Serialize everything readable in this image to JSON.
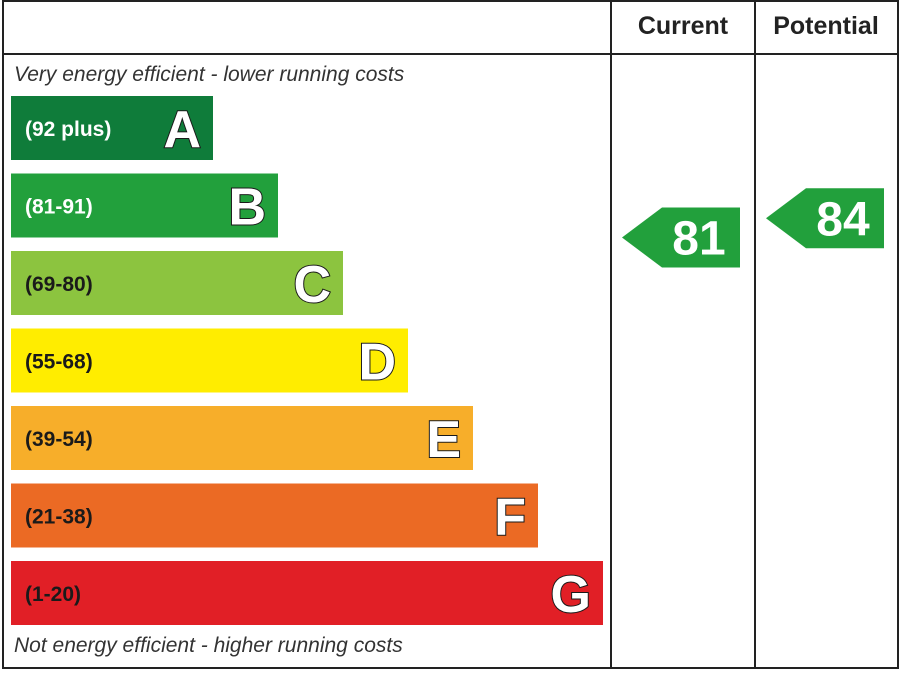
{
  "header": {
    "current_label": "Current",
    "potential_label": "Potential"
  },
  "chart_data": {
    "type": "bar",
    "top_note": "Very energy efficient - lower running costs",
    "bottom_note": "Not energy efficient - higher running costs",
    "bands": [
      {
        "letter": "A",
        "range": "(92 plus)",
        "color": "#0f7c3a",
        "text_color": "#ffffff"
      },
      {
        "letter": "B",
        "range": "(81-91)",
        "color": "#22a03c",
        "text_color": "#ffffff"
      },
      {
        "letter": "C",
        "range": "(69-80)",
        "color": "#8cc43f",
        "text_color": "#1a1a1a"
      },
      {
        "letter": "D",
        "range": "(55-68)",
        "color": "#ffed00",
        "text_color": "#1a1a1a"
      },
      {
        "letter": "E",
        "range": "(39-54)",
        "color": "#f7ae2a",
        "text_color": "#1a1a1a"
      },
      {
        "letter": "F",
        "range": "(21-38)",
        "color": "#eb6a24",
        "text_color": "#1a1a1a"
      },
      {
        "letter": "G",
        "range": "(1-20)",
        "color": "#e11f26",
        "text_color": "#1a1a1a"
      }
    ],
    "current": {
      "value": 81,
      "band": "B",
      "color": "#22a03c"
    },
    "potential": {
      "value": 84,
      "band": "B",
      "color": "#22a03c"
    }
  }
}
